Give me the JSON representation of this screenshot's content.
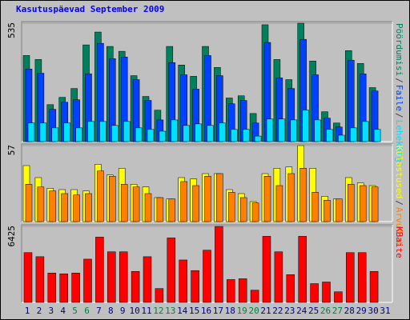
{
  "chart_data": [
    {
      "type": "bar",
      "title": "Kasutuspäevad September 2009",
      "ylim": [
        0,
        535
      ],
      "yticks": [
        535
      ],
      "legend_separator": "/",
      "series": [
        {
          "name": "Pöördumisi",
          "color": "#00805c",
          "values": [
            389,
            371,
            167,
            200,
            240,
            437,
            495,
            430,
            408,
            298,
            204,
            142,
            430,
            346,
            295,
            430,
            335,
            197,
            207,
            127,
            528,
            371,
            280,
            535,
            364,
            135,
            84,
            411,
            353,
            244,
            null
          ]
        },
        {
          "name": "Faile",
          "color": "#0040ff",
          "values": [
            328,
            309,
            146,
            178,
            189,
            306,
            444,
            375,
            382,
            280,
            186,
            98,
            357,
            302,
            237,
            389,
            298,
            171,
            186,
            84,
            448,
            288,
            240,
            462,
            302,
            106,
            66,
            368,
            306,
            229,
            null
          ]
        },
        {
          "name": "Lehekülgi",
          "color": "#00e0ff",
          "values": [
            84,
            84,
            62,
            84,
            62,
            91,
            91,
            73,
            91,
            62,
            55,
            47,
            98,
            73,
            80,
            73,
            84,
            55,
            55,
            25,
            102,
            102,
            98,
            142,
            98,
            55,
            29,
            62,
            91,
            55,
            null
          ]
        }
      ]
    },
    {
      "type": "bar",
      "ylim": [
        0,
        57
      ],
      "yticks": [
        57
      ],
      "legend_separator": "/",
      "series": [
        {
          "name": "Külastused",
          "color": "#ffff00",
          "values": [
            42,
            33,
            25,
            24,
            24,
            23,
            43,
            35,
            40,
            28,
            26,
            18,
            17,
            33,
            32,
            36,
            36,
            24,
            21,
            15,
            36,
            40,
            41,
            57,
            40,
            19,
            17,
            33,
            29,
            27,
            null
          ]
        },
        {
          "name": "Arvutid",
          "color": "#ff8000",
          "values": [
            28,
            26,
            23,
            21,
            20,
            21,
            38,
            34,
            28,
            26,
            21,
            18,
            17,
            30,
            27,
            34,
            36,
            22,
            18,
            14,
            34,
            27,
            36,
            40,
            22,
            16,
            17,
            28,
            27,
            26,
            null
          ]
        }
      ]
    },
    {
      "type": "bar",
      "ylim": [
        0,
        6425
      ],
      "yticks": [
        6425
      ],
      "series": [
        {
          "name": "KBaite",
          "color": "#ff0000",
          "values": [
            4209,
            3864,
            2484,
            2415,
            2484,
            3657,
            5520,
            4278,
            4278,
            2622,
            3864,
            1173,
            5451,
            3588,
            2691,
            4416,
            6425,
            1932,
            2001,
            1035,
            5589,
            4278,
            2346,
            5589,
            1587,
            1725,
            897,
            4209,
            4209,
            2622,
            null
          ]
        }
      ],
      "categories": [
        "1",
        "2",
        "3",
        "4",
        "5",
        "6",
        "7",
        "8",
        "9",
        "10",
        "11",
        "12",
        "13",
        "14",
        "15",
        "16",
        "17",
        "18",
        "19",
        "20",
        "21",
        "22",
        "23",
        "24",
        "25",
        "26",
        "27",
        "28",
        "29",
        "30",
        "31"
      ],
      "category_colors": [
        "#000080",
        "#000080",
        "#000080",
        "#000080",
        "#008040",
        "#008040",
        "#000080",
        "#000080",
        "#000080",
        "#000080",
        "#000080",
        "#008040",
        "#008040",
        "#000080",
        "#000080",
        "#000080",
        "#000080",
        "#000080",
        "#008040",
        "#008040",
        "#000080",
        "#000080",
        "#000080",
        "#000080",
        "#000080",
        "#008040",
        "#008040",
        "#000080",
        "#000080",
        "#000080",
        "#000080"
      ]
    }
  ]
}
